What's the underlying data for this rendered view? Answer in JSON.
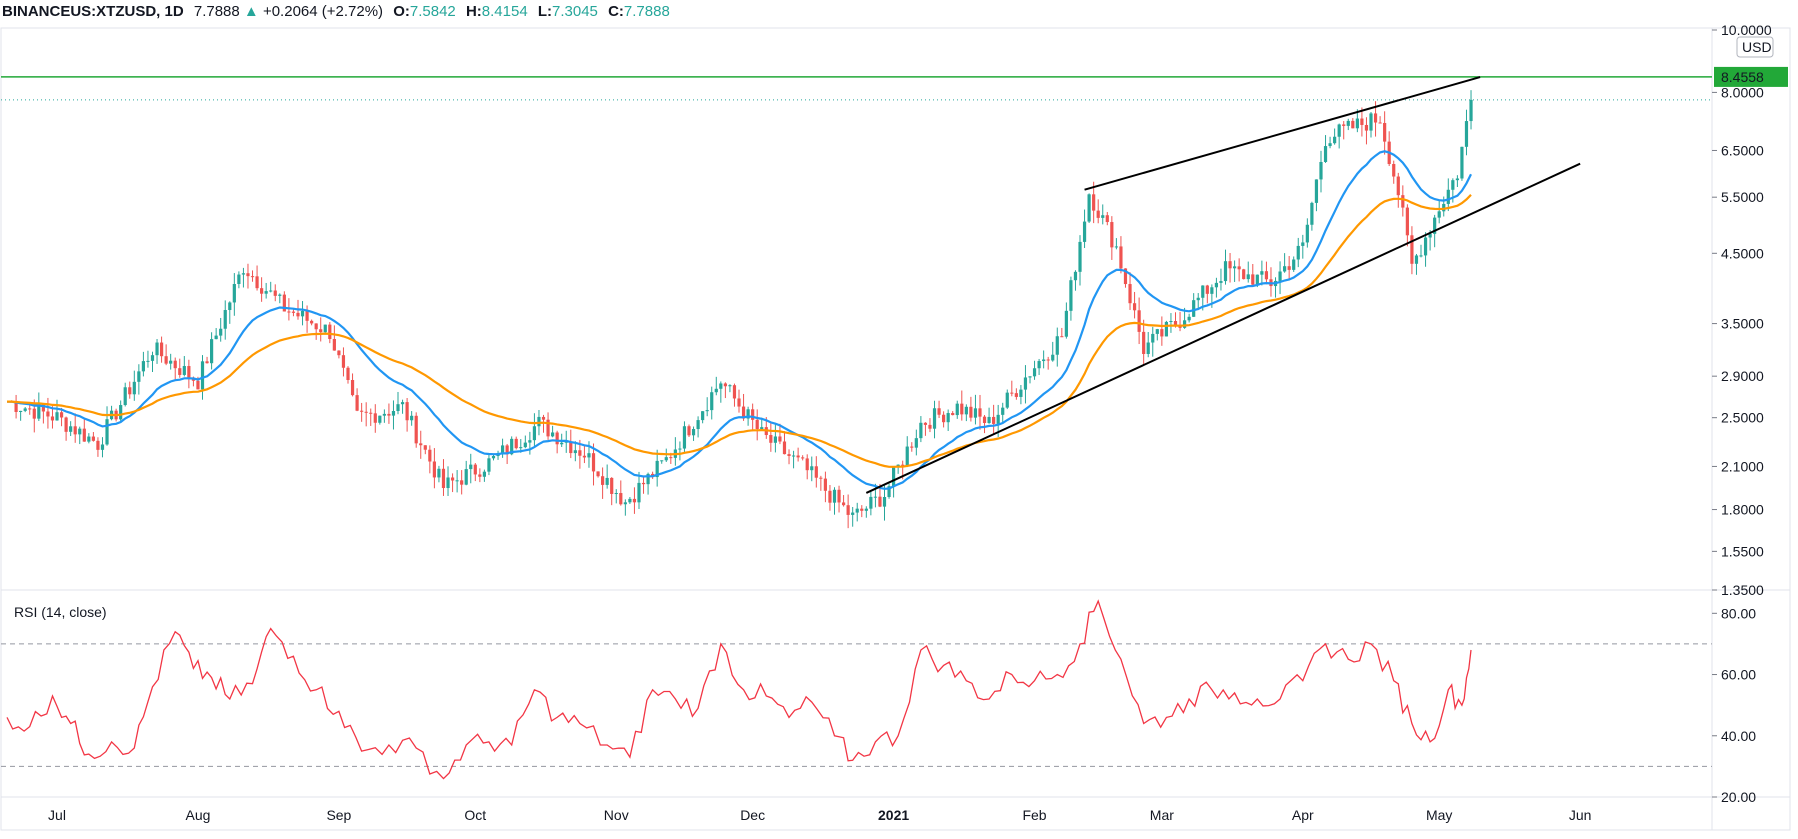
{
  "header": {
    "symbol": "BINANCEUS:XTZUSD, 1D",
    "last": "7.7888",
    "arrow": "▲",
    "change": "+0.2064 (+2.72%)",
    "o_label": "O:",
    "o_value": "7.5842",
    "h_label": "H:",
    "h_value": "8.4154",
    "l_label": "L:",
    "l_value": "7.3045",
    "c_label": "C:",
    "c_value": "7.7888"
  },
  "colors": {
    "up": "#26a69a",
    "down": "#ef5350",
    "ema_fast": "#2196f3",
    "ema_slow": "#ff9800",
    "resistance": "#22a838",
    "trend": "#000000",
    "rsi": "#f23645",
    "grid": "#d9d9d9"
  },
  "chart_data": [
    {
      "type": "candlestick",
      "title": "BINANCEUS:XTZUSD, 1D",
      "currency_label": "USD",
      "scale": "log",
      "y_ticks": [
        "10.0000",
        "8.0000",
        "6.5000",
        "5.5000",
        "4.5000",
        "3.5000",
        "2.9000",
        "2.5000",
        "2.1000",
        "1.8000",
        "1.5500",
        "1.3500"
      ],
      "ylim": [
        1.35,
        10.0
      ],
      "x_months": [
        "Jul",
        "Aug",
        "Sep",
        "Oct",
        "Nov",
        "Dec",
        "2021",
        "Feb",
        "Mar",
        "Apr",
        "May",
        "Jun"
      ],
      "x_range": [
        "2020-06-20",
        "2021-06-30"
      ],
      "highlight_label": "8.4558",
      "resistance_level": 8.4558,
      "last_price": 7.7888,
      "indicators": [
        "EMA (blue)",
        "EMA (orange)"
      ],
      "trendlines": [
        {
          "name": "upper",
          "from": [
            "2021-02-12",
            5.65
          ],
          "to": [
            "2021-05-10",
            8.45
          ]
        },
        {
          "name": "lower",
          "from": [
            "2020-12-26",
            1.91
          ],
          "to": [
            "2021-06-01",
            6.2
          ]
        }
      ],
      "price_path": [
        [
          "2020-06-20",
          2.65
        ],
        [
          "2020-07-01",
          2.5
        ],
        [
          "2020-07-10",
          2.28
        ],
        [
          "2020-07-22",
          3.2
        ],
        [
          "2020-08-01",
          2.85
        ],
        [
          "2020-08-11",
          4.3
        ],
        [
          "2020-08-20",
          3.7
        ],
        [
          "2020-08-30",
          3.4
        ],
        [
          "2020-09-05",
          2.5
        ],
        [
          "2020-09-15",
          2.6
        ],
        [
          "2020-09-24",
          1.95
        ],
        [
          "2020-10-05",
          2.15
        ],
        [
          "2020-10-15",
          2.45
        ],
        [
          "2020-10-25",
          2.2
        ],
        [
          "2020-11-03",
          1.85
        ],
        [
          "2020-11-12",
          2.15
        ],
        [
          "2020-11-24",
          2.85
        ],
        [
          "2020-12-03",
          2.35
        ],
        [
          "2020-12-12",
          2.1
        ],
        [
          "2020-12-23",
          1.75
        ],
        [
          "2020-12-30",
          1.9
        ],
        [
          "2021-01-07",
          2.45
        ],
        [
          "2021-01-15",
          2.6
        ],
        [
          "2021-01-22",
          2.45
        ],
        [
          "2021-01-31",
          2.95
        ],
        [
          "2021-02-07",
          3.35
        ],
        [
          "2021-02-13",
          5.6
        ],
        [
          "2021-02-19",
          4.6
        ],
        [
          "2021-02-25",
          3.2
        ],
        [
          "2021-03-05",
          3.55
        ],
        [
          "2021-03-15",
          4.25
        ],
        [
          "2021-03-25",
          4.05
        ],
        [
          "2021-04-01",
          4.6
        ],
        [
          "2021-04-06",
          6.8
        ],
        [
          "2021-04-14",
          7.15
        ],
        [
          "2021-04-18",
          7.3
        ],
        [
          "2021-04-22",
          5.6
        ],
        [
          "2021-04-25",
          4.3
        ],
        [
          "2021-05-01",
          5.3
        ],
        [
          "2021-05-05",
          6.0
        ],
        [
          "2021-05-08",
          7.79
        ]
      ]
    },
    {
      "type": "line",
      "title": "RSI (14, close)",
      "y_ticks": [
        "80.00",
        "60.00",
        "40.00",
        "20.00"
      ],
      "ylim": [
        20,
        85
      ],
      "bands": [
        70,
        30
      ],
      "values": [
        [
          "2020-06-20",
          46
        ],
        [
          "2020-06-25",
          43
        ],
        [
          "2020-06-30",
          53
        ],
        [
          "2020-07-04",
          44
        ],
        [
          "2020-07-08",
          34
        ],
        [
          "2020-07-13",
          38
        ],
        [
          "2020-07-18",
          36
        ],
        [
          "2020-07-22",
          56
        ],
        [
          "2020-07-27",
          74
        ],
        [
          "2020-07-31",
          62
        ],
        [
          "2020-08-04",
          59
        ],
        [
          "2020-08-08",
          52
        ],
        [
          "2020-08-13",
          57
        ],
        [
          "2020-08-17",
          75
        ],
        [
          "2020-08-22",
          66
        ],
        [
          "2020-08-27",
          55
        ],
        [
          "2020-09-01",
          48
        ],
        [
          "2020-09-06",
          35
        ],
        [
          "2020-09-12",
          37
        ],
        [
          "2020-09-18",
          36
        ],
        [
          "2020-09-24",
          26
        ],
        [
          "2020-09-29",
          37
        ],
        [
          "2020-10-04",
          38
        ],
        [
          "2020-10-09",
          37
        ],
        [
          "2020-10-14",
          55
        ],
        [
          "2020-10-19",
          46
        ],
        [
          "2020-10-24",
          44
        ],
        [
          "2020-10-30",
          37
        ],
        [
          "2020-11-04",
          33
        ],
        [
          "2020-11-09",
          55
        ],
        [
          "2020-11-14",
          52
        ],
        [
          "2020-11-19",
          49
        ],
        [
          "2020-11-24",
          70
        ],
        [
          "2020-11-29",
          55
        ],
        [
          "2020-12-04",
          53
        ],
        [
          "2020-12-09",
          46
        ],
        [
          "2020-12-14",
          51
        ],
        [
          "2020-12-19",
          40
        ],
        [
          "2020-12-23",
          32
        ],
        [
          "2020-12-28",
          38
        ],
        [
          "2021-01-02",
          40
        ],
        [
          "2021-01-07",
          68
        ],
        [
          "2021-01-12",
          63
        ],
        [
          "2021-01-17",
          58
        ],
        [
          "2021-01-22",
          52
        ],
        [
          "2021-01-27",
          60
        ],
        [
          "2021-02-01",
          58
        ],
        [
          "2021-02-06",
          60
        ],
        [
          "2021-02-11",
          70
        ],
        [
          "2021-02-15",
          84
        ],
        [
          "2021-02-20",
          65
        ],
        [
          "2021-02-25",
          44
        ],
        [
          "2021-03-02",
          46
        ],
        [
          "2021-03-07",
          52
        ],
        [
          "2021-03-12",
          55
        ],
        [
          "2021-03-17",
          54
        ],
        [
          "2021-03-22",
          52
        ],
        [
          "2021-03-27",
          52
        ],
        [
          "2021-04-01",
          58
        ],
        [
          "2021-04-06",
          70
        ],
        [
          "2021-04-11",
          65
        ],
        [
          "2021-04-16",
          70
        ],
        [
          "2021-04-21",
          58
        ],
        [
          "2021-04-25",
          44
        ],
        [
          "2021-04-29",
          38
        ],
        [
          "2021-05-03",
          55
        ],
        [
          "2021-05-06",
          50
        ],
        [
          "2021-05-08",
          68
        ]
      ]
    }
  ]
}
